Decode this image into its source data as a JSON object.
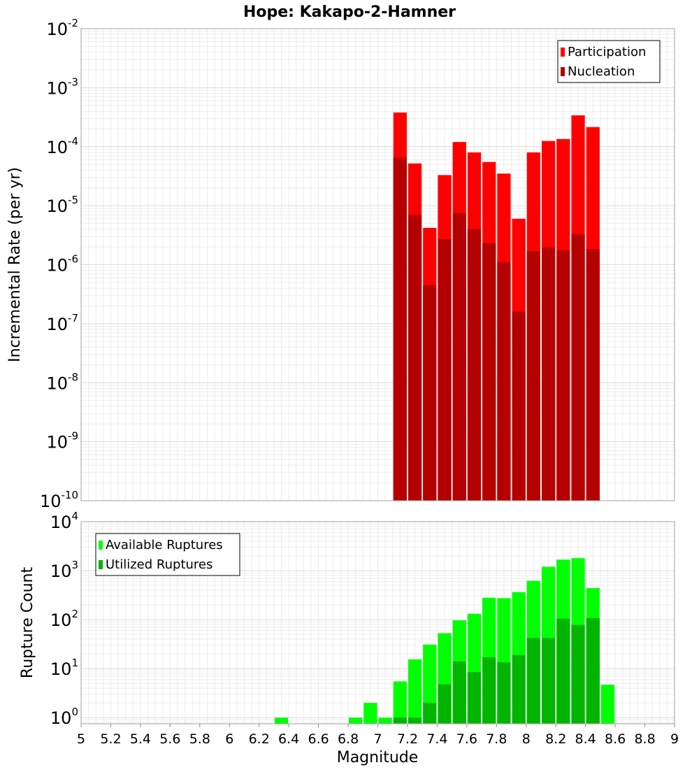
{
  "title": "Hope: Kakapo-2-Hamner",
  "x_axis": {
    "label": "Magnitude",
    "range": [
      5,
      9
    ],
    "ticks": [
      "5",
      "5.2",
      "5.4",
      "5.6",
      "5.8",
      "6",
      "6.2",
      "6.4",
      "6.6",
      "6.8",
      "7",
      "7.2",
      "7.4",
      "7.6",
      "7.8",
      "8",
      "8.2",
      "8.4",
      "8.6",
      "8.8",
      "9"
    ]
  },
  "chart_data": [
    {
      "type": "bar",
      "panel": "top",
      "ylabel": "Incremental Rate (per yr)",
      "yscale": "log",
      "ylim": [
        1e-10,
        0.01
      ],
      "y_ticks": [
        {
          "base": "10",
          "exp": "-10"
        },
        {
          "base": "10",
          "exp": "-9"
        },
        {
          "base": "10",
          "exp": "-8"
        },
        {
          "base": "10",
          "exp": "-7"
        },
        {
          "base": "10",
          "exp": "-6"
        },
        {
          "base": "10",
          "exp": "-5"
        },
        {
          "base": "10",
          "exp": "-4"
        },
        {
          "base": "10",
          "exp": "-3"
        },
        {
          "base": "10",
          "exp": "-2"
        }
      ],
      "bin_width": 0.1,
      "legend_position": "top-right",
      "x": [
        7.15,
        7.25,
        7.35,
        7.45,
        7.55,
        7.65,
        7.75,
        7.85,
        7.95,
        8.05,
        8.15,
        8.25,
        8.35,
        8.45
      ],
      "series": [
        {
          "name": "Participation",
          "color": "#ff0000",
          "values": [
            0.00038,
            5.2e-05,
            4.2e-06,
            3.3e-05,
            0.00012,
            8e-05,
            5.5e-05,
            3.5e-05,
            6e-06,
            8e-05,
            0.000125,
            0.000135,
            0.00034,
            0.000215
          ]
        },
        {
          "name": "Nucleation",
          "color": "#b40000",
          "values": [
            6.5e-05,
            7e-06,
            4.5e-07,
            2.7e-06,
            7.5e-06,
            4e-06,
            2.3e-06,
            1.1e-06,
            1.6e-07,
            1.7e-06,
            1.95e-06,
            1.75e-06,
            3.3e-06,
            1.85e-06
          ]
        }
      ]
    },
    {
      "type": "bar",
      "panel": "bottom",
      "ylabel": "Rupture Count",
      "yscale": "log",
      "ylim": [
        0.75,
        10000
      ],
      "y_ticks": [
        {
          "base": "10",
          "exp": "0",
          "value": 1
        },
        {
          "base": "10",
          "exp": "1",
          "value": 10
        },
        {
          "base": "10",
          "exp": "2",
          "value": 100
        },
        {
          "base": "10",
          "exp": "3",
          "value": 1000
        },
        {
          "base": "10",
          "exp": "4",
          "value": 10000
        }
      ],
      "bin_width": 0.1,
      "legend_position": "top-left",
      "series": [
        {
          "name": "Available Ruptures",
          "color": "#00ff00",
          "x": [
            6.35,
            6.85,
            6.95,
            7.05,
            7.15,
            7.25,
            7.35,
            7.45,
            7.55,
            7.65,
            7.75,
            7.85,
            7.95,
            8.05,
            8.15,
            8.25,
            8.35,
            8.45,
            8.55
          ],
          "values": [
            1,
            1,
            2,
            1,
            5.5,
            15.5,
            31,
            53,
            97,
            132,
            280,
            275,
            365,
            620,
            1200,
            1680,
            1800,
            440,
            4.7
          ]
        },
        {
          "name": "Utilized Ruptures",
          "color": "#00b400",
          "x": [
            7.15,
            7.25,
            7.35,
            7.45,
            7.55,
            7.65,
            7.75,
            7.85,
            7.95,
            8.05,
            8.15,
            8.25,
            8.35,
            8.45
          ],
          "values": [
            1,
            1,
            2,
            4.8,
            14,
            8.5,
            17,
            13.5,
            19,
            42,
            42,
            105,
            78,
            108
          ]
        }
      ]
    }
  ]
}
